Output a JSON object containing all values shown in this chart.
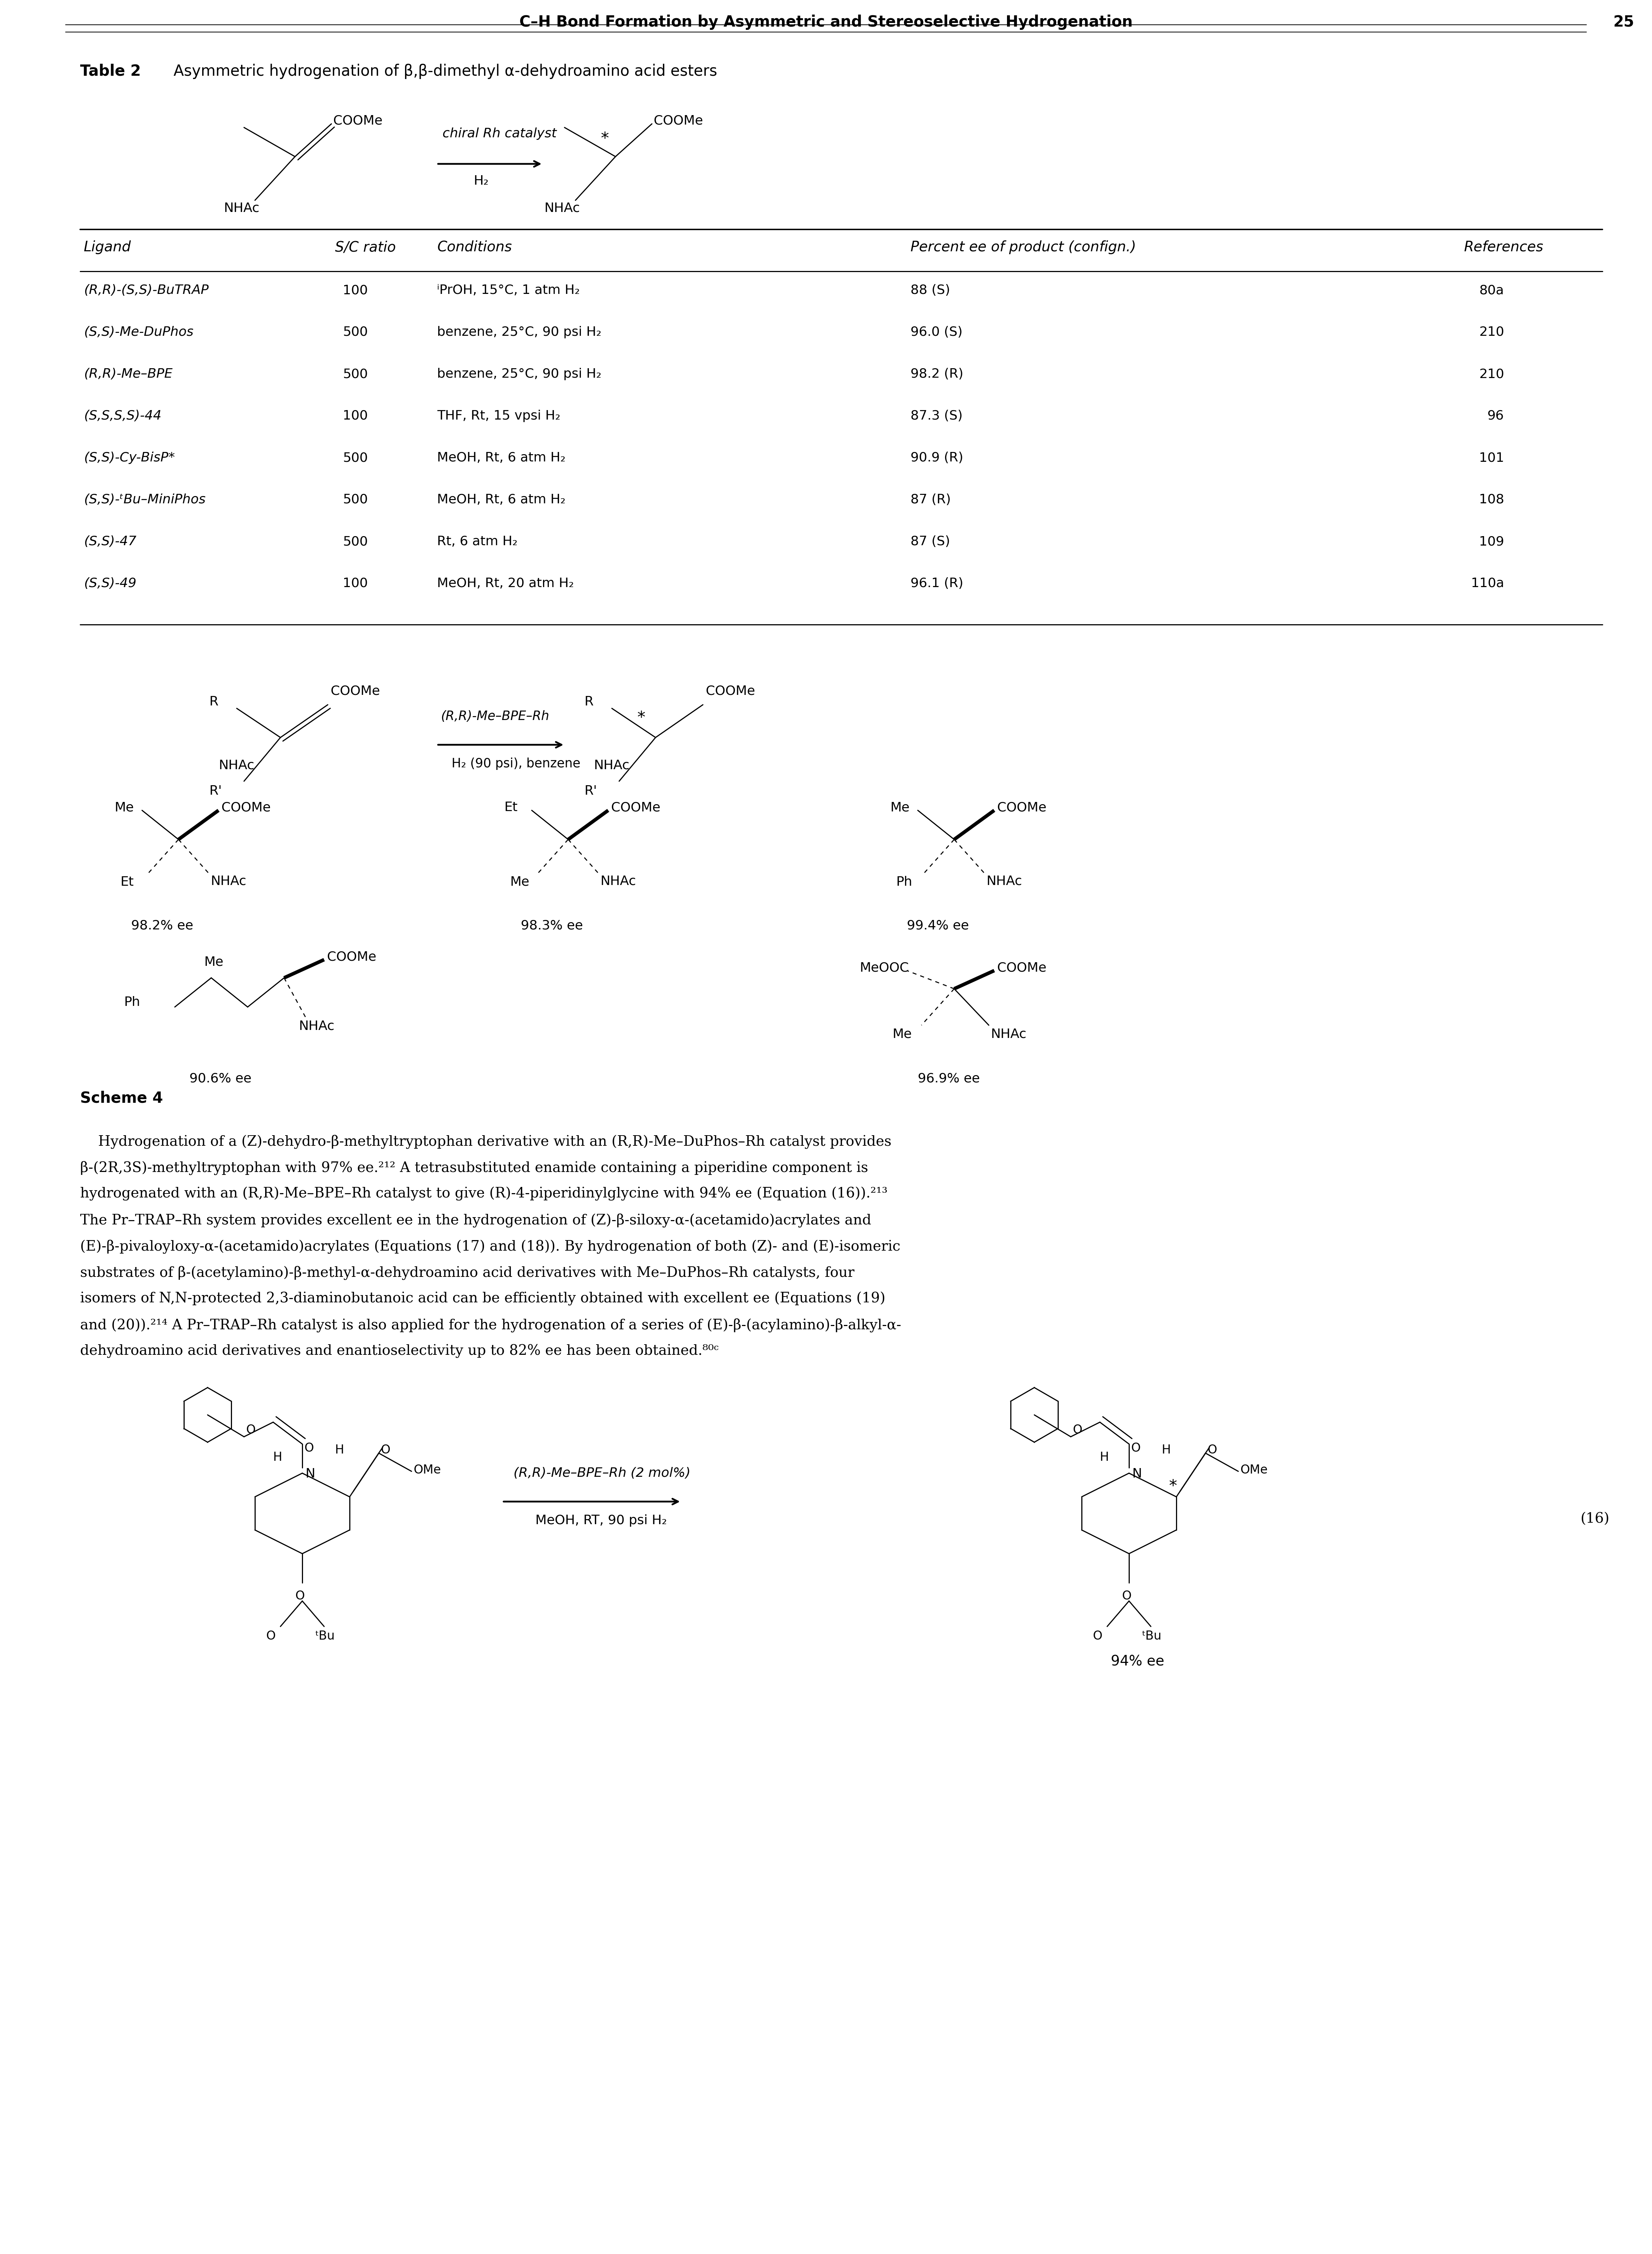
{
  "page_title": "C–H Bond Formation by Asymmetric and Stereoselective Hydrogenation",
  "page_number": "25",
  "table_caption_bold": "Table 2",
  "table_caption_normal": "  Asymmetric hydrogenation of β,β-dimethyl α-dehydroamino acid esters",
  "table_headers": [
    "Ligand",
    "S/C ratio",
    "Conditions",
    "Percent ee of product (confign.)",
    "References"
  ],
  "table_rows": [
    [
      "(R,R)-(S,S)-BuTRAP",
      "100",
      "ⁱPrOH, 15°C, 1 atm H₂",
      "88 (S)",
      "80a"
    ],
    [
      "(S,S)-Me-DuPhos",
      "500",
      "benzene, 25°C, 90 psi H₂",
      "96.0 (S)",
      "210"
    ],
    [
      "(R,R)-Me–BPE",
      "500",
      "benzene, 25°C, 90 psi H₂",
      "98.2 (R)",
      "210"
    ],
    [
      "(S,S,S,S)-44",
      "100",
      "THF, Rt, 15 vpsi H₂",
      "87.3 (S)",
      "96"
    ],
    [
      "(S,S)-Cy-BisP*",
      "500",
      "MeOH, Rt, 6 atm H₂",
      "90.9 (R)",
      "101"
    ],
    [
      "(S,S)-ᵗBu–MiniPhos",
      "500",
      "MeOH, Rt, 6 atm H₂",
      "87 (R)",
      "108"
    ],
    [
      "(S,S)-47",
      "500",
      "Rt, 6 atm H₂",
      "87 (S)",
      "109"
    ],
    [
      "(S,S)-49",
      "100",
      "MeOH, Rt, 20 atm H₂",
      "96.1 (R)",
      "110a"
    ]
  ],
  "scheme4_label": "Scheme 4",
  "body_text_lines": [
    "    Hydrogenation of a (Z)-dehydro-β-methyltryptophan derivative with an (R,R)-Me–DuPhos–Rh catalyst provides",
    "β-(2R,3S)-methyltryptophan with 97% ee.²¹² A tetrasubstituted enamide containing a piperidine component is",
    "hydrogenated with an (R,R)-Me–BPE–Rh catalyst to give (R)-4-piperidinylglycine with 94% ee (Equation (16)).²¹³",
    "The Pr–TRAP–Rh system provides excellent ee in the hydrogenation of (Z)-β-siloxy-α-(acetamido)acrylates and",
    "(E)-β-pivaloyloxy-α-(acetamido)acrylates (Equations (17) and (18)). By hydrogenation of both (Z)- and (E)-isomeric",
    "substrates of β-(acetylamino)-β-methyl-α-dehydroamino acid derivatives with Me–DuPhos–Rh catalysts, four",
    "isomers of N,N-protected 2,3-diaminobutanoic acid can be efficiently obtained with excellent ee (Equations (19)",
    "and (20)).²¹⁴ A Pr–TRAP–Rh catalyst is also applied for the hydrogenation of a series of (E)-β-(acylamino)-β-alkyl-α-",
    "dehydroamino acid derivatives and enantioselectivity up to 82% ee has been obtained.⁸⁰ᶜ"
  ],
  "background_color": "#ffffff"
}
